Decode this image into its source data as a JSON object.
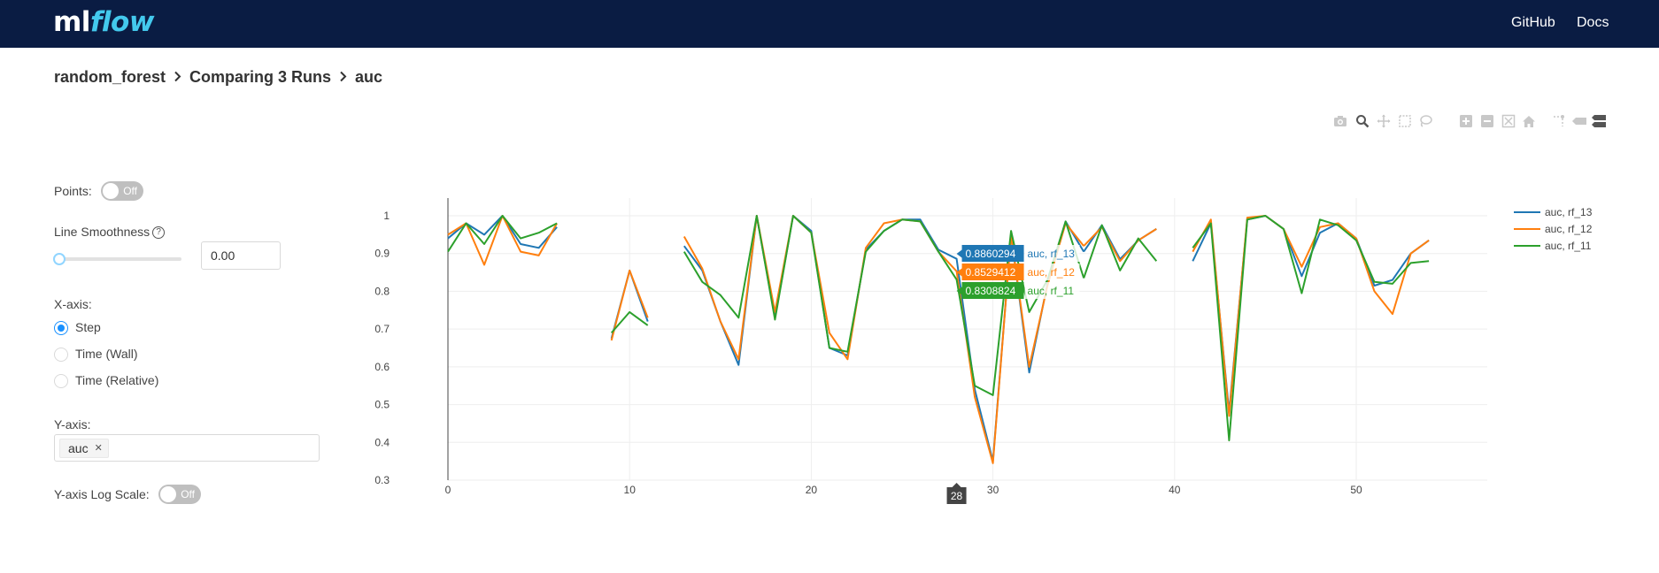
{
  "header": {
    "logo_ml": "ml",
    "logo_flow": "flow",
    "nav": [
      {
        "label": "GitHub"
      },
      {
        "label": "Docs"
      }
    ]
  },
  "breadcrumb": {
    "items": [
      "random_forest",
      "Comparing 3 Runs",
      "auc"
    ],
    "separator": "›"
  },
  "modebar": {
    "icons": [
      "camera-icon",
      "zoom-icon",
      "pan-icon",
      "box-select-icon",
      "lasso-select-icon",
      "zoom-in-icon",
      "zoom-out-icon",
      "autoscale-icon",
      "reset-axes-icon",
      "spike-lines-icon",
      "hover-closest-icon",
      "hover-compare-icon"
    ]
  },
  "controls": {
    "points_label": "Points:",
    "points_toggle": "Off",
    "smoothness_label": "Line Smoothness",
    "smoothness_value": "0.00",
    "xaxis_label": "X-axis:",
    "xaxis_options": [
      "Step",
      "Time (Wall)",
      "Time (Relative)"
    ],
    "xaxis_selected": "Step",
    "yaxis_label": "Y-axis:",
    "yaxis_tags": [
      "auc"
    ],
    "ylog_label": "Y-axis Log Scale:",
    "ylog_toggle": "Off"
  },
  "colors": {
    "header_bg": "#0a1c43",
    "rf_13": "#1f77b4",
    "rf_12": "#ff7f0e",
    "rf_11": "#2ca02c",
    "accent": "#1890ff"
  },
  "chart_data": {
    "type": "line",
    "xlim": [
      0,
      57
    ],
    "ylim": [
      0.3,
      1.0
    ],
    "x_ticks": [
      0,
      10,
      20,
      30,
      40,
      50
    ],
    "y_ticks": [
      0.3,
      0.4,
      0.5,
      0.6,
      0.7,
      0.8,
      0.9,
      1
    ],
    "grid": true,
    "legend_position": "top-right",
    "hover_x_label": "28",
    "hover_labels": [
      {
        "value": "0.8860294",
        "name": "auc, rf_13"
      },
      {
        "value": "0.8529412",
        "name": "auc, rf_12"
      },
      {
        "value": "0.8308824",
        "name": "auc, rf_11"
      }
    ],
    "series": [
      {
        "name": "auc, rf_13",
        "segments": [
          {
            "x": [
              0,
              1,
              2,
              3,
              4,
              5,
              6
            ],
            "y": [
              0.94,
              0.98,
              0.95,
              1.0,
              0.925,
              0.915,
              0.97
            ]
          },
          {
            "x": [
              9,
              10,
              11
            ],
            "y": [
              0.675,
              0.855,
              0.72
            ]
          },
          {
            "x": [
              13,
              14,
              15,
              16,
              17,
              18,
              19,
              20,
              21,
              22,
              23,
              24,
              25,
              26,
              27,
              28,
              29,
              30,
              31,
              32,
              33,
              34,
              35
            ],
            "y": [
              0.92,
              0.855,
              0.72,
              0.605,
              1.0,
              0.73,
              1.0,
              0.96,
              0.65,
              0.63,
              0.91,
              0.96,
              0.99,
              0.99,
              0.91,
              0.886,
              0.54,
              0.35,
              0.95,
              0.585,
              0.82,
              0.985,
              0.905
            ]
          },
          {
            "x": [
              35,
              36,
              37,
              38,
              39
            ],
            "y": [
              0.905,
              0.975,
              0.885,
              0.935,
              0.965
            ]
          },
          {
            "x": [
              41,
              42,
              43,
              44,
              45,
              46,
              47,
              48,
              49,
              50,
              51,
              52,
              53,
              54
            ],
            "y": [
              0.88,
              0.98,
              0.48,
              0.99,
              1.0,
              0.965,
              0.84,
              0.955,
              0.98,
              0.94,
              0.815,
              0.83,
              0.9,
              0.935
            ]
          }
        ]
      },
      {
        "name": "auc, rf_12",
        "segments": [
          {
            "x": [
              0,
              1,
              2,
              3,
              4,
              5,
              6
            ],
            "y": [
              0.95,
              0.98,
              0.87,
              1.0,
              0.905,
              0.895,
              0.98
            ]
          },
          {
            "x": [
              9,
              10,
              11
            ],
            "y": [
              0.67,
              0.855,
              0.73
            ]
          },
          {
            "x": [
              13,
              14,
              15,
              16,
              17,
              18,
              19,
              20,
              21,
              22,
              23,
              24,
              25,
              26,
              27,
              28,
              29,
              30,
              31,
              32,
              33,
              34,
              35
            ],
            "y": [
              0.945,
              0.86,
              0.72,
              0.62,
              1.0,
              0.745,
              1.0,
              0.955,
              0.69,
              0.62,
              0.915,
              0.98,
              0.99,
              0.985,
              0.905,
              0.853,
              0.52,
              0.345,
              0.95,
              0.6,
              0.815,
              0.98,
              0.92
            ]
          },
          {
            "x": [
              35,
              36,
              37,
              38,
              39
            ],
            "y": [
              0.92,
              0.97,
              0.88,
              0.935,
              0.965
            ]
          },
          {
            "x": [
              41,
              42,
              43,
              44,
              45,
              46,
              47,
              48,
              49,
              50,
              51,
              52,
              53,
              54
            ],
            "y": [
              0.905,
              0.99,
              0.47,
              0.995,
              1.0,
              0.965,
              0.865,
              0.97,
              0.98,
              0.94,
              0.8,
              0.74,
              0.9,
              0.935
            ]
          }
        ]
      },
      {
        "name": "auc, rf_11",
        "segments": [
          {
            "x": [
              0,
              1,
              2,
              3,
              4,
              5,
              6
            ],
            "y": [
              0.905,
              0.98,
              0.925,
              1.0,
              0.94,
              0.955,
              0.98
            ]
          },
          {
            "x": [
              9,
              10,
              11
            ],
            "y": [
              0.69,
              0.745,
              0.71
            ]
          },
          {
            "x": [
              13,
              14,
              15,
              16,
              17,
              18,
              19,
              20,
              21,
              22,
              23,
              24,
              25,
              26,
              27,
              28,
              29,
              30,
              31,
              32,
              33,
              34,
              35
            ],
            "y": [
              0.905,
              0.825,
              0.79,
              0.73,
              1.0,
              0.725,
              1.0,
              0.955,
              0.65,
              0.64,
              0.905,
              0.96,
              0.99,
              0.985,
              0.905,
              0.831,
              0.55,
              0.525,
              0.96,
              0.745,
              0.83,
              0.985,
              0.835
            ]
          },
          {
            "x": [
              35,
              36,
              37,
              38,
              39
            ],
            "y": [
              0.835,
              0.975,
              0.855,
              0.94,
              0.88
            ]
          },
          {
            "x": [
              41,
              42,
              43,
              44,
              45,
              46,
              47,
              48,
              49,
              50,
              51,
              52,
              53,
              54
            ],
            "y": [
              0.915,
              0.98,
              0.405,
              0.99,
              1.0,
              0.965,
              0.795,
              0.99,
              0.975,
              0.935,
              0.825,
              0.82,
              0.875,
              0.88
            ]
          }
        ]
      }
    ]
  }
}
